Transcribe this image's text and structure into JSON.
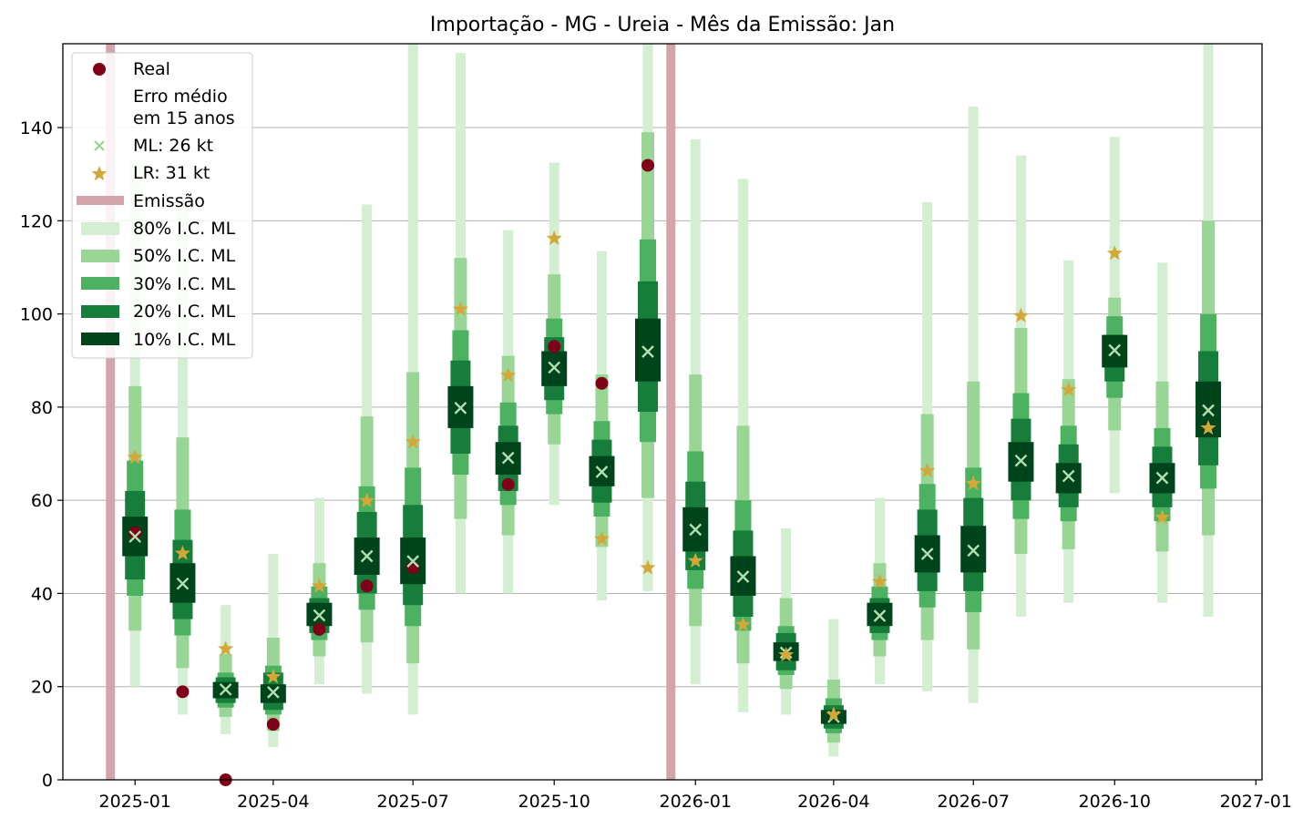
{
  "chart_data": {
    "type": "interval",
    "title": "Importação - MG - Ureia - Mês da Emissão: Jan",
    "xlabel": "",
    "ylabel": "",
    "ylim": [
      0,
      158
    ],
    "xlim": [
      "2024-11-15",
      "2027-01-05"
    ],
    "grid": "horizontal",
    "y_ticks": [
      0,
      20,
      40,
      60,
      80,
      100,
      120,
      140
    ],
    "x_ticks": [
      "2025-01",
      "2025-04",
      "2025-07",
      "2025-10",
      "2026-01",
      "2026-04",
      "2026-07",
      "2026-10",
      "2027-01"
    ],
    "x_tick_dates": [
      "2025-01-01",
      "2025-04-01",
      "2025-07-01",
      "2025-10-01",
      "2026-01-01",
      "2026-04-01",
      "2026-07-01",
      "2026-10-01",
      "2027-01-01"
    ],
    "emission_lines": [
      "2024-12-16",
      "2025-12-16"
    ],
    "legend_position": "upper left",
    "legend": {
      "real": "Real",
      "error_line1": "Erro médio",
      "error_line2": "em 15 anos",
      "ml": "ML: 26 kt",
      "lr": "LR: 31 kt",
      "emission": "Emissão",
      "ci80": "80% I.C. ML",
      "ci50": "50% I.C. ML",
      "ci30": "30% I.C. ML",
      "ci20": "20% I.C. ML",
      "ci10": "10% I.C. ML"
    },
    "colors": {
      "real": "#7f0018",
      "ml": "#b2dfb2",
      "lr": "#d4a838",
      "emission": "#d4a4ad",
      "ci80": "#d3eed1",
      "ci50": "#99d595",
      "ci30": "#4cb161",
      "ci20": "#167e3a",
      "ci10": "#00441b"
    },
    "dates": [
      "2025-01-01",
      "2025-02-01",
      "2025-03-01",
      "2025-04-01",
      "2025-05-01",
      "2025-06-01",
      "2025-07-01",
      "2025-08-01",
      "2025-09-01",
      "2025-10-01",
      "2025-11-01",
      "2025-12-01",
      "2026-01-01",
      "2026-02-01",
      "2026-03-01",
      "2026-04-01",
      "2026-05-01",
      "2026-06-01",
      "2026-07-01",
      "2026-08-01",
      "2026-09-01",
      "2026-10-01",
      "2026-11-01",
      "2026-12-01"
    ],
    "ml": [
      52.2,
      42.1,
      19.4,
      18.8,
      35.3,
      48.0,
      46.9,
      79.8,
      69.1,
      88.5,
      66.1,
      91.9,
      53.7,
      43.6,
      27.3,
      13.5,
      35.2,
      48.5,
      49.2,
      68.5,
      65.2,
      92.2,
      64.8,
      79.3
    ],
    "lr": [
      69.2,
      48.6,
      28.1,
      22.1,
      41.6,
      59.9,
      72.5,
      101.0,
      86.8,
      116.2,
      51.7,
      45.5,
      47.0,
      33.3,
      26.8,
      14.0,
      42.5,
      66.3,
      63.6,
      99.6,
      83.7,
      113.0,
      56.3,
      75.5
    ],
    "real": [
      53.0,
      18.9,
      0.0,
      11.9,
      32.3,
      41.6,
      45.6,
      null,
      63.4,
      93.0,
      85.1,
      131.9,
      null,
      null,
      null,
      null,
      null,
      null,
      null,
      null,
      null,
      null,
      null,
      null
    ],
    "ci80": [
      [
        20,
        133
      ],
      [
        14,
        126
      ],
      [
        9.8,
        37.5
      ],
      [
        7,
        48.5
      ],
      [
        20.5,
        60.5
      ],
      [
        18.5,
        123.5
      ],
      [
        14,
        158
      ],
      [
        40,
        156
      ],
      [
        40,
        118
      ],
      [
        59,
        132.5
      ],
      [
        38.5,
        113.5
      ],
      [
        40.5,
        158
      ],
      [
        20.5,
        137.5
      ],
      [
        14.5,
        129
      ],
      [
        14,
        54
      ],
      [
        5,
        34.5
      ],
      [
        20.5,
        60.5
      ],
      [
        19,
        124
      ],
      [
        16.5,
        144.5
      ],
      [
        35,
        134
      ],
      [
        38,
        111.5
      ],
      [
        61.5,
        138
      ],
      [
        38,
        111
      ],
      [
        35,
        158
      ]
    ],
    "ci50": [
      [
        32,
        84.5
      ],
      [
        24,
        73.5
      ],
      [
        13.5,
        27
      ],
      [
        10.5,
        30.5
      ],
      [
        26.5,
        46.5
      ],
      [
        29.5,
        78
      ],
      [
        25,
        87.5
      ],
      [
        56,
        112
      ],
      [
        52.5,
        91
      ],
      [
        72,
        108.5
      ],
      [
        50,
        87
      ],
      [
        60.5,
        139
      ],
      [
        33,
        87
      ],
      [
        25,
        76
      ],
      [
        19.5,
        39
      ],
      [
        8,
        21.5
      ],
      [
        26.5,
        46.5
      ],
      [
        30,
        78.5
      ],
      [
        28,
        85.5
      ],
      [
        48.5,
        97
      ],
      [
        49.5,
        86
      ],
      [
        75,
        103.5
      ],
      [
        49,
        85.5
      ],
      [
        52.5,
        120
      ]
    ],
    "ci30": [
      [
        39.5,
        68.5
      ],
      [
        31,
        58
      ],
      [
        15.5,
        23
      ],
      [
        14,
        24.5
      ],
      [
        30,
        41.5
      ],
      [
        36.5,
        63
      ],
      [
        33,
        67
      ],
      [
        65.5,
        96.5
      ],
      [
        59,
        81
      ],
      [
        78.5,
        99
      ],
      [
        56.5,
        77
      ],
      [
        72.5,
        116
      ],
      [
        41,
        70.5
      ],
      [
        32,
        60
      ],
      [
        22.5,
        33
      ],
      [
        10,
        17.5
      ],
      [
        30,
        41.5
      ],
      [
        37,
        63.5
      ],
      [
        36,
        67
      ],
      [
        56,
        83
      ],
      [
        55.5,
        76
      ],
      [
        82,
        99.5
      ],
      [
        55.5,
        75.5
      ],
      [
        62.5,
        100
      ]
    ],
    "ci20": [
      [
        43,
        62
      ],
      [
        34.5,
        51.5
      ],
      [
        16.5,
        22
      ],
      [
        15,
        23
      ],
      [
        31.5,
        39
      ],
      [
        40,
        57.5
      ],
      [
        37.5,
        59
      ],
      [
        70,
        90
      ],
      [
        62,
        76
      ],
      [
        81.5,
        95
      ],
      [
        59.5,
        73
      ],
      [
        79,
        107
      ],
      [
        45,
        64
      ],
      [
        35,
        53.5
      ],
      [
        23.5,
        31.5
      ],
      [
        11,
        16
      ],
      [
        31.5,
        39
      ],
      [
        40.5,
        58
      ],
      [
        40.5,
        60.5
      ],
      [
        60,
        77.5
      ],
      [
        58.5,
        72
      ],
      [
        85.5,
        95.5
      ],
      [
        58.5,
        71.5
      ],
      [
        67.5,
        92
      ]
    ],
    "ci10": [
      [
        48,
        56.5
      ],
      [
        38,
        46.5
      ],
      [
        17.5,
        21
      ],
      [
        16.5,
        20.5
      ],
      [
        33,
        38
      ],
      [
        44,
        52
      ],
      [
        42,
        52
      ],
      [
        75.5,
        84.5
      ],
      [
        65.5,
        72.5
      ],
      [
        84.5,
        92
      ],
      [
        63,
        69.5
      ],
      [
        85.5,
        99
      ],
      [
        49,
        58.5
      ],
      [
        39.5,
        48
      ],
      [
        25.5,
        29.5
      ],
      [
        12,
        15
      ],
      [
        33,
        38
      ],
      [
        44.5,
        52.5
      ],
      [
        44.5,
        54.5
      ],
      [
        64,
        72.5
      ],
      [
        61.5,
        68
      ],
      [
        88.5,
        95.5
      ],
      [
        61.5,
        68
      ],
      [
        73.5,
        85.5
      ]
    ]
  }
}
